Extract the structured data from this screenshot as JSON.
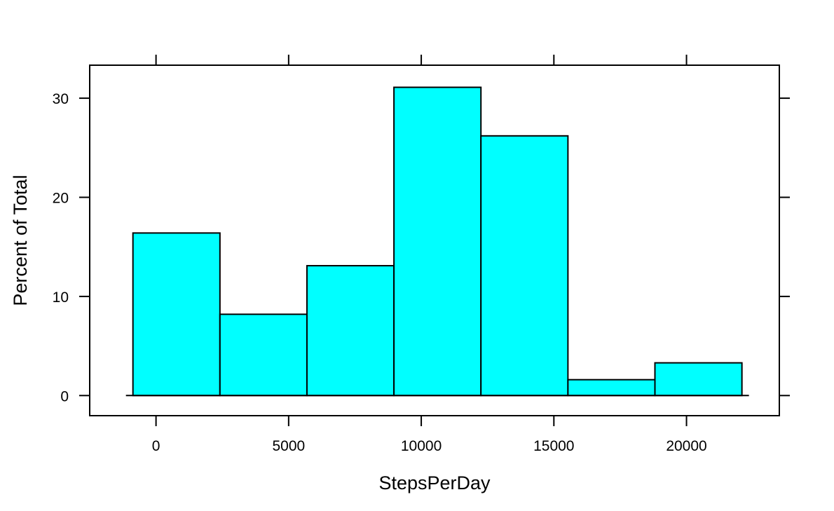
{
  "chart_data": {
    "type": "bar",
    "subtype": "histogram",
    "xlabel": "StepsPerDay",
    "ylabel": "Percent of Total",
    "xlim": [
      -2500,
      23500
    ],
    "ylim": [
      -2.03,
      33.33
    ],
    "bar_color": "#00FFFF",
    "border_color": "#000000",
    "grid": false,
    "x_ticks": [
      0,
      5000,
      10000,
      15000,
      20000
    ],
    "x_tick_labels": [
      "0",
      "5000",
      "10000",
      "15000",
      "20000"
    ],
    "y_ticks": [
      0,
      10,
      20,
      30
    ],
    "y_tick_labels": [
      "0",
      "10",
      "20",
      "30"
    ],
    "bins": [
      {
        "start": -870,
        "end": 2410,
        "value": 16.4
      },
      {
        "start": 2410,
        "end": 5690,
        "value": 8.2
      },
      {
        "start": 5690,
        "end": 8970,
        "value": 13.1
      },
      {
        "start": 8970,
        "end": 12250,
        "value": 31.1
      },
      {
        "start": 12250,
        "end": 15530,
        "value": 26.2
      },
      {
        "start": 15530,
        "end": 18810,
        "value": 1.6
      },
      {
        "start": 18810,
        "end": 22090,
        "value": 3.3
      }
    ]
  }
}
